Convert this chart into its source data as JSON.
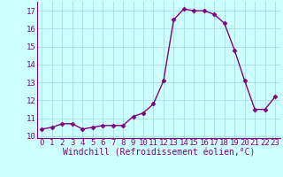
{
  "x": [
    0,
    1,
    2,
    3,
    4,
    5,
    6,
    7,
    8,
    9,
    10,
    11,
    12,
    13,
    14,
    15,
    16,
    17,
    18,
    19,
    20,
    21,
    22,
    23
  ],
  "y": [
    10.4,
    10.5,
    10.7,
    10.7,
    10.4,
    10.5,
    10.6,
    10.6,
    10.6,
    11.1,
    11.3,
    11.8,
    13.1,
    16.5,
    17.1,
    17.0,
    17.0,
    16.8,
    16.3,
    14.8,
    13.1,
    11.5,
    11.5,
    12.2
  ],
  "line_color": "#800080",
  "marker": "D",
  "marker_size": 2.5,
  "bg_color": "#ccffff",
  "grid_color": "#aadddd",
  "xlabel": "Windchill (Refroidissement éolien,°C)",
  "xlim": [
    -0.5,
    23.5
  ],
  "ylim": [
    9.9,
    17.5
  ],
  "yticks": [
    10,
    11,
    12,
    13,
    14,
    15,
    16,
    17
  ],
  "xticks": [
    0,
    1,
    2,
    3,
    4,
    5,
    6,
    7,
    8,
    9,
    10,
    11,
    12,
    13,
    14,
    15,
    16,
    17,
    18,
    19,
    20,
    21,
    22,
    23
  ],
  "tick_color": "#800080",
  "label_color": "#800080",
  "xlabel_fontsize": 7,
  "tick_fontsize": 6.5,
  "line_width": 1.0
}
